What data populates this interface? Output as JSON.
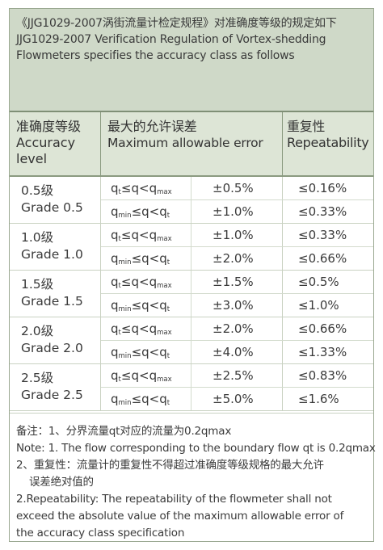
{
  "title": {
    "line1": "《JJG1029-2007涡街流量计检定规程》对准确度等级的规定如下",
    "line2": "JJG1029-2007 Verification Regulation of Vortex-shedding",
    "line3": "Flowmeters specifies the accuracy class as follows"
  },
  "headers": {
    "accuracy_cn": "准确度等级",
    "accuracy_en1": "Accuracy",
    "accuracy_en2": "level",
    "error_cn": "最大的允许误差",
    "error_en": "Maximum allowable error",
    "repeat_cn": "重复性",
    "repeat_en": "Repeatability"
  },
  "condition_symbols": {
    "q": "q",
    "t_sub": "t",
    "max_sub": "max",
    "min_sub": "min",
    "le": "≤",
    "lt": "<"
  },
  "grades": [
    {
      "cn": "0.5级",
      "en": "Grade 0.5",
      "err_high": "±0.5%",
      "err_low": "±1.0%",
      "rep_high": "≤0.16%",
      "rep_low": "≤0.33%"
    },
    {
      "cn": "1.0级",
      "en": "Grade 1.0",
      "err_high": "±1.0%",
      "err_low": "±2.0%",
      "rep_high": "≤0.33%",
      "rep_low": "≤0.66%"
    },
    {
      "cn": "1.5级",
      "en": "Grade 1.5",
      "err_high": "±1.5%",
      "err_low": "±3.0%",
      "rep_high": "≤0.5%",
      "rep_low": "≤1.0%"
    },
    {
      "cn": "2.0级",
      "en": "Grade 2.0",
      "err_high": "±2.0%",
      "err_low": "±4.0%",
      "rep_high": "≤0.66%",
      "rep_low": "≤1.33%"
    },
    {
      "cn": "2.5级",
      "en": "Grade 2.5",
      "err_high": "±2.5%",
      "err_low": "±5.0%",
      "rep_high": "≤0.83%",
      "rep_low": "≤1.6%"
    }
  ],
  "notes": {
    "n1_cn": "备注：1、分界流量qt对应的流量为0.2qmax",
    "n1_en": "Note: 1. The flow corresponding to the boundary flow qt is 0.2qmax",
    "n2_cn_a": "2、重复性：流量计的重复性不得超过准确度等级规格的最大允许",
    "n2_cn_b": "误差绝对值的",
    "n2_en_a": "2.Repeatability: The repeatability of the flowmeter shall not",
    "n2_en_b": "exceed the absolute value of the maximum allowable error of",
    "n2_en_c": "the accuracy class specification"
  },
  "colors": {
    "title_bg": "#cfd9c8",
    "header_bg": "#dde5d6",
    "border": "#8a9a80"
  }
}
